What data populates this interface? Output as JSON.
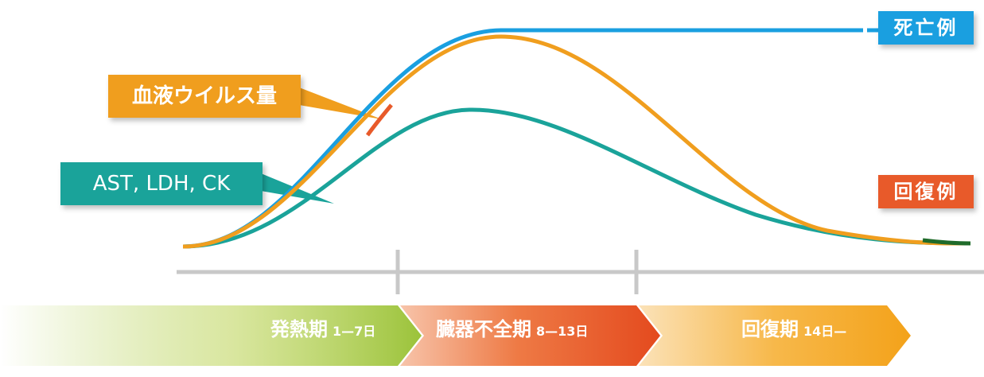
{
  "labels": {
    "death": "死亡例",
    "viral_load": "血液ウイルス量",
    "enzymes": "AST, LDH, CK",
    "recovery": "回復例"
  },
  "phases": [
    {
      "name": "発熱期",
      "range": "1—7日"
    },
    {
      "name": "臓器不全期",
      "range": "8—13日"
    },
    {
      "name": "回復期",
      "range": "14日—"
    }
  ],
  "colors": {
    "death": "#1a9fe0",
    "viral_load": "#f09e1e",
    "enzymes": "#1aa39a",
    "recovery": "#e85a2a",
    "timeline": "#c8c8c8"
  }
}
